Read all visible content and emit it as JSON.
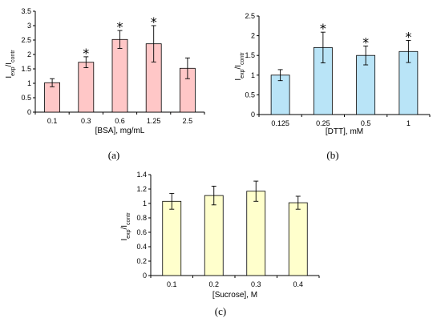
{
  "colors": {
    "bsa_fill": "#ffc7c7",
    "dtt_fill": "#b9e4f7",
    "sucrose_fill": "#ffffcc",
    "stroke": "#000000"
  },
  "chart_data": [
    {
      "id": "a",
      "type": "bar",
      "panel_label": "(a)",
      "ylabel": {
        "main": "I",
        "sub1": "exp",
        "mid": "/I",
        "sub2": "contr"
      },
      "xlabel": "[BSA], mg/mL",
      "categories": [
        "0.1",
        "0.3",
        "0.6",
        "1.25",
        "2.5"
      ],
      "values": [
        1.02,
        1.73,
        2.52,
        2.37,
        1.52
      ],
      "errors": [
        0.14,
        0.19,
        0.31,
        0.63,
        0.36
      ],
      "significant": [
        false,
        true,
        true,
        true,
        false
      ],
      "marker": "*",
      "ylim": [
        0,
        3.5
      ],
      "yticks": [
        "0",
        "0.5",
        "1",
        "1.5",
        "2",
        "2.5",
        "3",
        "3.5"
      ],
      "grid": false
    },
    {
      "id": "b",
      "type": "bar",
      "panel_label": "(b)",
      "ylabel": {
        "main": "I",
        "sub1": "exp",
        "mid": "/I",
        "sub2": "contr"
      },
      "xlabel": "[DTT], mM",
      "categories": [
        "0.125",
        "0.25",
        "0.5",
        "1"
      ],
      "values": [
        1.0,
        1.7,
        1.5,
        1.6
      ],
      "errors": [
        0.14,
        0.39,
        0.24,
        0.28
      ],
      "significant": [
        false,
        true,
        true,
        true
      ],
      "marker": "*",
      "ylim": [
        0,
        2.5
      ],
      "yticks": [
        "0",
        "0.5",
        "1",
        "1.5",
        "2",
        "2.5"
      ],
      "grid": false
    },
    {
      "id": "c",
      "type": "bar",
      "panel_label": "(c)",
      "ylabel": {
        "main": "I",
        "sub1": "exp",
        "mid": "/I",
        "sub2": "contr"
      },
      "xlabel": "[Sucrose], M",
      "categories": [
        "0.1",
        "0.2",
        "0.3",
        "0.4"
      ],
      "values": [
        1.03,
        1.11,
        1.17,
        1.01
      ],
      "errors": [
        0.11,
        0.13,
        0.14,
        0.09
      ],
      "significant": [
        false,
        false,
        false,
        false
      ],
      "marker": "*",
      "ylim": [
        0,
        1.4
      ],
      "yticks": [
        "0",
        "0.2",
        "0.4",
        "0.6",
        "0.8",
        "1",
        "1.2",
        "1.4"
      ],
      "grid": false
    }
  ]
}
